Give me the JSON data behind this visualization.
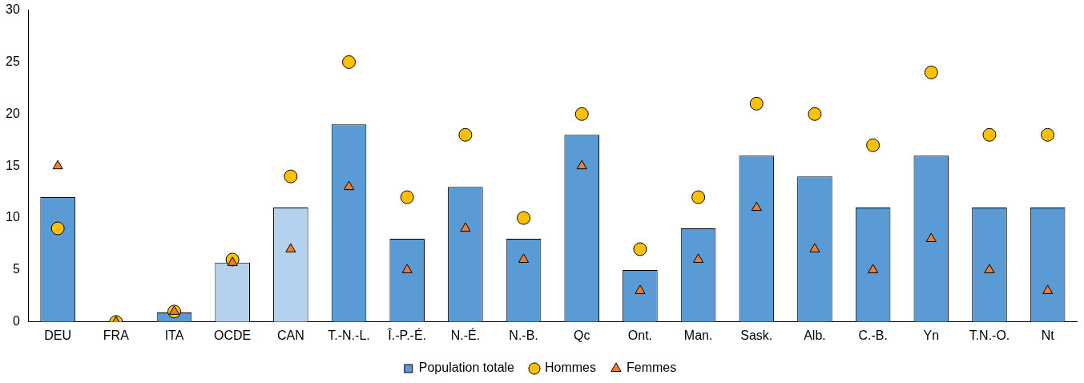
{
  "chart_data": {
    "type": "bar",
    "categories": [
      "DEU",
      "FRA",
      "ITA",
      "OCDE",
      "CAN",
      "T.-N.-L.",
      "Î.-P.-É.",
      "N.-É.",
      "N.-B.",
      "Qc",
      "Ont.",
      "Man.",
      "Sask.",
      "Alb.",
      "C.-B.",
      "Yn",
      "T.N.-O.",
      "Nt"
    ],
    "series": [
      {
        "name": "Population totale",
        "color": "#5b9bd5",
        "colors": [
          "#5b9bd5",
          "#5b9bd5",
          "#5b9bd5",
          "#b4d2ee",
          "#b4d2ee",
          "#5b9bd5",
          "#5b9bd5",
          "#5b9bd5",
          "#5b9bd5",
          "#5b9bd5",
          "#5b9bd5",
          "#5b9bd5",
          "#5b9bd5",
          "#5b9bd5",
          "#5b9bd5",
          "#5b9bd5",
          "#5b9bd5",
          "#5b9bd5"
        ],
        "values": [
          12,
          0,
          0.9,
          5.7,
          11,
          19,
          8,
          13,
          8,
          18,
          5,
          9,
          16,
          14,
          11,
          16,
          11,
          11
        ]
      },
      {
        "name": "Hommes",
        "type": "scatter",
        "marker": "circle",
        "color": "#ffc000",
        "values": [
          9,
          0,
          1,
          6,
          14,
          25,
          12,
          18,
          10,
          20,
          7,
          12,
          21,
          20,
          17,
          24,
          18,
          18
        ]
      },
      {
        "name": "Femmes",
        "type": "scatter",
        "marker": "triangle",
        "color": "#ed7d31",
        "values": [
          15,
          0,
          1,
          5.7,
          7,
          13,
          5,
          9,
          6,
          15,
          3,
          6,
          11,
          7,
          5,
          8,
          5,
          3
        ]
      }
    ],
    "ylim": [
      0,
      30
    ],
    "yticks": [
      0,
      5,
      10,
      15,
      20,
      25,
      30
    ],
    "grid": false,
    "legend": "bottom"
  }
}
